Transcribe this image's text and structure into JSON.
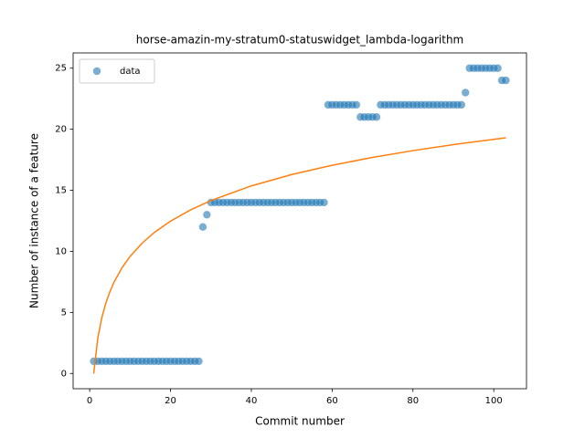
{
  "chart_data": {
    "type": "scatter",
    "title": "horse-amazin-my-stratum0-statuswidget_lambda-logarithm",
    "xlabel": "Commit number",
    "ylabel": "Number of instance of a feature",
    "xlim": [
      -4.1,
      108.1
    ],
    "ylim": [
      -1.25,
      26.25
    ],
    "xticks": [
      0,
      20,
      40,
      60,
      80,
      100
    ],
    "yticks": [
      0,
      5,
      10,
      15,
      20,
      25
    ],
    "legend": "upper left",
    "series": [
      {
        "name": "data",
        "mode": "markers",
        "color": "#1f77b4",
        "x": [
          1,
          2,
          3,
          4,
          5,
          6,
          7,
          8,
          9,
          10,
          11,
          12,
          13,
          14,
          15,
          16,
          17,
          18,
          19,
          20,
          21,
          22,
          23,
          24,
          25,
          26,
          27,
          28,
          29,
          30,
          31,
          32,
          33,
          34,
          35,
          36,
          37,
          38,
          39,
          40,
          41,
          42,
          43,
          44,
          45,
          46,
          47,
          48,
          49,
          50,
          51,
          52,
          53,
          54,
          55,
          56,
          57,
          58,
          59,
          60,
          61,
          62,
          63,
          64,
          65,
          66,
          67,
          68,
          69,
          70,
          71,
          72,
          73,
          74,
          75,
          76,
          77,
          78,
          79,
          80,
          81,
          82,
          83,
          84,
          85,
          86,
          87,
          88,
          89,
          90,
          91,
          92,
          93,
          94,
          95,
          96,
          97,
          98,
          99,
          100,
          101,
          102,
          103
        ],
        "values": [
          1,
          1,
          1,
          1,
          1,
          1,
          1,
          1,
          1,
          1,
          1,
          1,
          1,
          1,
          1,
          1,
          1,
          1,
          1,
          1,
          1,
          1,
          1,
          1,
          1,
          1,
          1,
          12,
          13,
          14,
          14,
          14,
          14,
          14,
          14,
          14,
          14,
          14,
          14,
          14,
          14,
          14,
          14,
          14,
          14,
          14,
          14,
          14,
          14,
          14,
          14,
          14,
          14,
          14,
          14,
          14,
          14,
          14,
          22,
          22,
          22,
          22,
          22,
          22,
          22,
          22,
          21,
          21,
          21,
          21,
          21,
          22,
          22,
          22,
          22,
          22,
          22,
          22,
          22,
          22,
          22,
          22,
          22,
          22,
          22,
          22,
          22,
          22,
          22,
          22,
          22,
          22,
          23,
          25,
          25,
          25,
          25,
          25,
          25,
          25,
          25,
          24,
          24
        ]
      },
      {
        "mode": "line",
        "color": "#ff7f0e",
        "x": [
          1,
          2,
          3,
          4,
          5,
          6,
          8,
          10,
          13,
          16,
          20,
          25,
          30,
          40,
          50,
          60,
          70,
          80,
          90,
          103
        ],
        "values": [
          0,
          2.89,
          4.57,
          5.77,
          6.7,
          7.46,
          8.66,
          9.59,
          10.68,
          11.55,
          12.47,
          13.4,
          14.16,
          15.36,
          16.29,
          17.05,
          17.69,
          18.25,
          18.74,
          19.3
        ]
      }
    ]
  }
}
